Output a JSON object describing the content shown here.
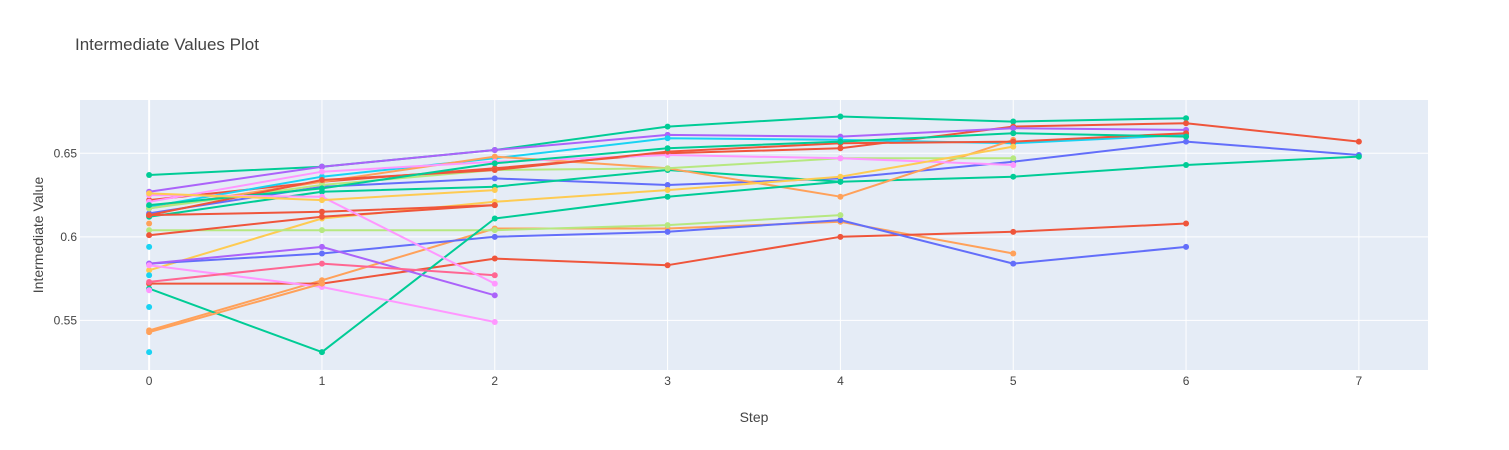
{
  "chart_data": {
    "type": "line",
    "title": "Intermediate Values Plot",
    "xlabel": "Step",
    "ylabel": "Intermediate Value",
    "xlim": [
      -0.4,
      7.4
    ],
    "ylim": [
      0.5203,
      0.6819
    ],
    "x_ticks": [
      0,
      1,
      2,
      3,
      4,
      5,
      6,
      7
    ],
    "y_ticks": [
      {
        "value": 0.55,
        "label": "0.55"
      },
      {
        "value": 0.6,
        "label": "0.6"
      },
      {
        "value": 0.65,
        "label": "0.65"
      }
    ],
    "grid": true,
    "legend": "none",
    "series": [
      {
        "color": "#00cc96",
        "points": [
          [
            0,
            0.637
          ],
          [
            1,
            0.642
          ],
          [
            2,
            0.652
          ],
          [
            3,
            0.666
          ],
          [
            4,
            0.672
          ],
          [
            5,
            0.669
          ],
          [
            6,
            0.671
          ]
        ]
      },
      {
        "color": "#ef553b",
        "points": [
          [
            0,
            0.622
          ],
          [
            1,
            0.633
          ],
          [
            2,
            0.641
          ],
          [
            3,
            0.65
          ],
          [
            4,
            0.653
          ],
          [
            5,
            0.666
          ],
          [
            6,
            0.668
          ],
          [
            7,
            0.657
          ]
        ]
      },
      {
        "color": "#ab63fa",
        "points": [
          [
            0,
            0.627
          ],
          [
            1,
            0.642
          ],
          [
            2,
            0.652
          ],
          [
            3,
            0.661
          ],
          [
            4,
            0.66
          ],
          [
            5,
            0.665
          ],
          [
            6,
            0.664
          ]
        ]
      },
      {
        "color": "#19d3f3",
        "points": [
          [
            0,
            0.618
          ],
          [
            1,
            0.636
          ],
          [
            2,
            0.647
          ],
          [
            3,
            0.659
          ],
          [
            4,
            0.658
          ],
          [
            5,
            0.656
          ],
          [
            6,
            0.661
          ]
        ]
      },
      {
        "color": "#636efa",
        "points": [
          [
            0,
            0.614
          ],
          [
            1,
            0.63
          ],
          [
            2,
            0.635
          ],
          [
            3,
            0.631
          ],
          [
            4,
            0.635
          ],
          [
            5,
            0.645
          ],
          [
            6,
            0.657
          ],
          [
            7,
            0.649
          ]
        ]
      },
      {
        "color": "#00cc96",
        "points": [
          [
            0,
            0.612
          ],
          [
            1,
            0.627
          ],
          [
            2,
            0.63
          ],
          [
            3,
            0.64
          ],
          [
            4,
            0.633
          ],
          [
            5,
            0.636
          ],
          [
            6,
            0.643
          ],
          [
            7,
            0.648
          ]
        ]
      },
      {
        "color": "#ffa15a",
        "points": [
          [
            0,
            0.617
          ],
          [
            1,
            0.633
          ],
          [
            2,
            0.648
          ],
          [
            3,
            0.641
          ],
          [
            4,
            0.624
          ],
          [
            5,
            0.658
          ]
        ]
      },
      {
        "color": "#b6e880",
        "points": [
          [
            0,
            0.617
          ],
          [
            1,
            0.631
          ],
          [
            2,
            0.64
          ],
          [
            3,
            0.641
          ],
          [
            4,
            0.647
          ],
          [
            5,
            0.647
          ]
        ]
      },
      {
        "color": "#ff97ff",
        "points": [
          [
            0,
            0.621
          ],
          [
            1,
            0.639
          ],
          [
            2,
            0.645
          ],
          [
            3,
            0.649
          ],
          [
            4,
            0.647
          ],
          [
            5,
            0.643
          ]
        ]
      },
      {
        "color": "#ef553b",
        "points": [
          [
            0,
            0.613
          ],
          [
            1,
            0.634
          ],
          [
            2,
            0.64
          ],
          [
            3,
            0.651
          ],
          [
            4,
            0.656
          ],
          [
            5,
            0.657
          ],
          [
            6,
            0.662
          ]
        ]
      },
      {
        "color": "#00cc96",
        "points": [
          [
            0,
            0.619
          ],
          [
            1,
            0.629
          ],
          [
            2,
            0.644
          ],
          [
            3,
            0.653
          ],
          [
            4,
            0.657
          ],
          [
            5,
            0.662
          ],
          [
            6,
            0.66
          ]
        ]
      },
      {
        "color": "#fecb52",
        "points": [
          [
            0,
            0.58
          ],
          [
            1,
            0.611
          ],
          [
            2,
            0.621
          ],
          [
            3,
            0.628
          ],
          [
            4,
            0.636
          ],
          [
            5,
            0.654
          ]
        ]
      },
      {
        "color": "#ffa15a",
        "points": [
          [
            0,
            0.544
          ],
          [
            1,
            0.574
          ],
          [
            2,
            0.605
          ],
          [
            3,
            0.605
          ],
          [
            4,
            0.609
          ],
          [
            5,
            0.59
          ]
        ]
      },
      {
        "color": "#ef553b",
        "points": [
          [
            0,
            0.572
          ],
          [
            1,
            0.572
          ],
          [
            2,
            0.587
          ],
          [
            3,
            0.583
          ],
          [
            4,
            0.6
          ],
          [
            5,
            0.603
          ],
          [
            6,
            0.608
          ]
        ]
      },
      {
        "color": "#636efa",
        "points": [
          [
            0,
            0.584
          ],
          [
            1,
            0.59
          ],
          [
            2,
            0.6
          ],
          [
            3,
            0.603
          ],
          [
            4,
            0.61
          ],
          [
            5,
            0.584
          ],
          [
            6,
            0.594
          ]
        ]
      },
      {
        "color": "#b6e880",
        "points": [
          [
            0,
            0.604
          ],
          [
            1,
            0.604
          ],
          [
            2,
            0.604
          ],
          [
            3,
            0.607
          ],
          [
            4,
            0.613
          ]
        ]
      },
      {
        "color": "#00cc96",
        "points": [
          [
            0,
            0.569
          ],
          [
            1,
            0.531
          ],
          [
            2,
            0.611
          ],
          [
            3,
            0.624
          ],
          [
            4,
            0.633
          ]
        ]
      },
      {
        "color": "#ab63fa",
        "points": [
          [
            0,
            0.584
          ],
          [
            1,
            0.594
          ],
          [
            2,
            0.565
          ]
        ]
      },
      {
        "color": "#ff97ff",
        "points": [
          [
            0,
            0.583
          ],
          [
            1,
            0.57
          ],
          [
            2,
            0.549
          ]
        ]
      },
      {
        "color": "#ef553b",
        "points": [
          [
            0,
            0.601
          ],
          [
            1,
            0.612
          ],
          [
            2,
            0.619
          ]
        ]
      },
      {
        "color": "#ef553b",
        "points": [
          [
            0,
            0.613
          ],
          [
            1,
            0.615
          ],
          [
            2,
            0.619
          ]
        ]
      },
      {
        "color": "#ff6692",
        "points": [
          [
            0,
            0.573
          ],
          [
            1,
            0.584
          ],
          [
            2,
            0.577
          ]
        ]
      },
      {
        "color": "#ffa15a",
        "points": [
          [
            0,
            0.543
          ],
          [
            1,
            0.572
          ]
        ]
      },
      {
        "color": "#ff97ff",
        "points": [
          [
            0,
            0.625
          ],
          [
            1,
            0.624
          ],
          [
            2,
            0.572
          ]
        ]
      },
      {
        "color": "#fecb52",
        "points": [
          [
            0,
            0.626
          ],
          [
            1,
            0.622
          ],
          [
            2,
            0.628
          ]
        ]
      },
      {
        "color": "#19d3f3",
        "points": [
          [
            0,
            0.594
          ]
        ]
      },
      {
        "color": "#19d3f3",
        "points": [
          [
            0,
            0.558
          ]
        ]
      },
      {
        "color": "#19d3f3",
        "points": [
          [
            0,
            0.531
          ]
        ]
      },
      {
        "color": "#ff97ff",
        "points": [
          [
            0,
            0.568
          ]
        ]
      },
      {
        "color": "#ffa15a",
        "points": [
          [
            0,
            0.608
          ]
        ]
      },
      {
        "color": "#19d3f3",
        "points": [
          [
            0,
            0.577
          ]
        ]
      }
    ]
  }
}
